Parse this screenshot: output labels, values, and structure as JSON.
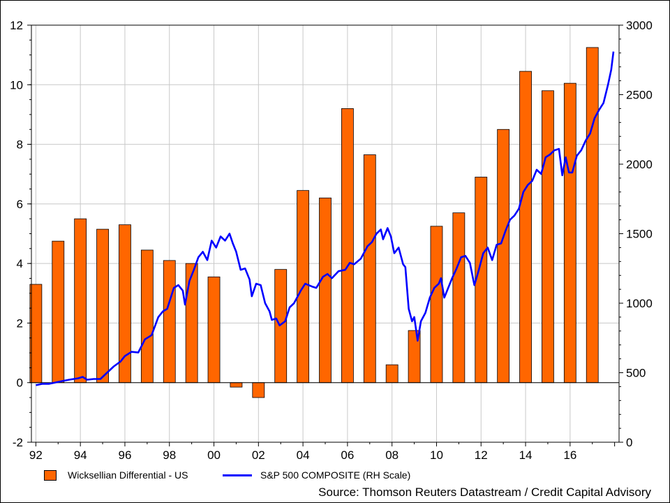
{
  "chart_data": {
    "type": "bar+line",
    "title": "",
    "xlabel": "",
    "x_tick_labels": [
      "92",
      "94",
      "96",
      "98",
      "00",
      "02",
      "04",
      "06",
      "08",
      "10",
      "12",
      "14",
      "16"
    ],
    "x_range": [
      1991.8,
      2018.2
    ],
    "y_left": {
      "range": [
        -2,
        12
      ],
      "ticks": [
        -2,
        0,
        2,
        4,
        6,
        8,
        10,
        12
      ]
    },
    "y_right": {
      "range": [
        0,
        3000
      ],
      "ticks": [
        0,
        500,
        1000,
        1500,
        2000,
        2500,
        3000
      ]
    },
    "grid": true,
    "legend_position": "bottom-left",
    "series": [
      {
        "name": "Wicksellian Differential - US",
        "type": "bar",
        "axis": "left",
        "color": "#ff6600",
        "x": [
          1992,
          1993,
          1994,
          1995,
          1996,
          1997,
          1998,
          1999,
          2000,
          2001,
          2002,
          2003,
          2004,
          2005,
          2006,
          2007,
          2008,
          2009,
          2010,
          2011,
          2012,
          2013,
          2014,
          2015,
          2016,
          2017
        ],
        "values": [
          3.3,
          4.75,
          5.5,
          5.15,
          5.3,
          4.45,
          4.1,
          4.0,
          3.55,
          -0.15,
          -0.5,
          3.8,
          6.45,
          6.2,
          9.2,
          7.65,
          0.6,
          1.75,
          5.25,
          5.7,
          6.9,
          8.5,
          10.45,
          9.8,
          10.05,
          11.25
        ]
      },
      {
        "name": "S&P 500 COMPOSITE (RH Scale)",
        "type": "line",
        "axis": "right",
        "color": "#0000ff",
        "points": [
          [
            1992.0,
            410
          ],
          [
            1992.3,
            420
          ],
          [
            1992.6,
            420
          ],
          [
            1992.9,
            430
          ],
          [
            1993.2,
            440
          ],
          [
            1993.5,
            450
          ],
          [
            1993.9,
            460
          ],
          [
            1994.1,
            470
          ],
          [
            1994.3,
            450
          ],
          [
            1994.6,
            455
          ],
          [
            1994.9,
            455
          ],
          [
            1995.2,
            500
          ],
          [
            1995.5,
            545
          ],
          [
            1995.8,
            580
          ],
          [
            1996.0,
            620
          ],
          [
            1996.3,
            650
          ],
          [
            1996.6,
            645
          ],
          [
            1996.9,
            740
          ],
          [
            1997.2,
            770
          ],
          [
            1997.5,
            900
          ],
          [
            1997.7,
            940
          ],
          [
            1997.9,
            960
          ],
          [
            1998.2,
            1110
          ],
          [
            1998.4,
            1130
          ],
          [
            1998.6,
            1090
          ],
          [
            1998.7,
            990
          ],
          [
            1998.9,
            1160
          ],
          [
            1999.1,
            1240
          ],
          [
            1999.3,
            1330
          ],
          [
            1999.5,
            1370
          ],
          [
            1999.7,
            1310
          ],
          [
            1999.9,
            1450
          ],
          [
            2000.1,
            1400
          ],
          [
            2000.3,
            1480
          ],
          [
            2000.5,
            1450
          ],
          [
            2000.7,
            1500
          ],
          [
            2000.85,
            1430
          ],
          [
            2001.0,
            1370
          ],
          [
            2001.2,
            1240
          ],
          [
            2001.4,
            1250
          ],
          [
            2001.6,
            1170
          ],
          [
            2001.7,
            1050
          ],
          [
            2001.9,
            1140
          ],
          [
            2002.1,
            1130
          ],
          [
            2002.3,
            1000
          ],
          [
            2002.5,
            940
          ],
          [
            2002.6,
            880
          ],
          [
            2002.8,
            890
          ],
          [
            2002.95,
            840
          ],
          [
            2003.2,
            870
          ],
          [
            2003.4,
            970
          ],
          [
            2003.6,
            1000
          ],
          [
            2003.9,
            1090
          ],
          [
            2004.1,
            1140
          ],
          [
            2004.4,
            1120
          ],
          [
            2004.6,
            1110
          ],
          [
            2004.9,
            1190
          ],
          [
            2005.1,
            1210
          ],
          [
            2005.3,
            1180
          ],
          [
            2005.6,
            1230
          ],
          [
            2005.9,
            1240
          ],
          [
            2006.1,
            1290
          ],
          [
            2006.3,
            1280
          ],
          [
            2006.6,
            1320
          ],
          [
            2006.9,
            1410
          ],
          [
            2007.1,
            1440
          ],
          [
            2007.3,
            1500
          ],
          [
            2007.5,
            1530
          ],
          [
            2007.6,
            1460
          ],
          [
            2007.8,
            1540
          ],
          [
            2007.95,
            1480
          ],
          [
            2008.1,
            1360
          ],
          [
            2008.3,
            1400
          ],
          [
            2008.5,
            1280
          ],
          [
            2008.6,
            1260
          ],
          [
            2008.75,
            960
          ],
          [
            2008.9,
            870
          ],
          [
            2009.0,
            900
          ],
          [
            2009.15,
            730
          ],
          [
            2009.3,
            870
          ],
          [
            2009.5,
            930
          ],
          [
            2009.7,
            1040
          ],
          [
            2009.9,
            1110
          ],
          [
            2010.1,
            1140
          ],
          [
            2010.2,
            1180
          ],
          [
            2010.35,
            1040
          ],
          [
            2010.5,
            1100
          ],
          [
            2010.7,
            1180
          ],
          [
            2010.9,
            1250
          ],
          [
            2011.1,
            1330
          ],
          [
            2011.3,
            1340
          ],
          [
            2011.5,
            1290
          ],
          [
            2011.7,
            1130
          ],
          [
            2011.9,
            1240
          ],
          [
            2012.1,
            1360
          ],
          [
            2012.3,
            1400
          ],
          [
            2012.5,
            1310
          ],
          [
            2012.7,
            1420
          ],
          [
            2012.9,
            1430
          ],
          [
            2013.1,
            1520
          ],
          [
            2013.3,
            1600
          ],
          [
            2013.5,
            1630
          ],
          [
            2013.7,
            1680
          ],
          [
            2013.9,
            1800
          ],
          [
            2014.1,
            1850
          ],
          [
            2014.3,
            1880
          ],
          [
            2014.5,
            1960
          ],
          [
            2014.7,
            1930
          ],
          [
            2014.9,
            2050
          ],
          [
            2015.1,
            2070
          ],
          [
            2015.3,
            2100
          ],
          [
            2015.5,
            2110
          ],
          [
            2015.65,
            1920
          ],
          [
            2015.8,
            2050
          ],
          [
            2015.95,
            1940
          ],
          [
            2016.1,
            1940
          ],
          [
            2016.3,
            2060
          ],
          [
            2016.5,
            2100
          ],
          [
            2016.7,
            2170
          ],
          [
            2016.9,
            2220
          ],
          [
            2017.1,
            2330
          ],
          [
            2017.3,
            2390
          ],
          [
            2017.5,
            2440
          ],
          [
            2017.7,
            2570
          ],
          [
            2017.85,
            2680
          ],
          [
            2017.95,
            2810
          ]
        ]
      }
    ]
  },
  "source": "Source: Thomson Reuters Datastream / Credit Capital Advisory"
}
